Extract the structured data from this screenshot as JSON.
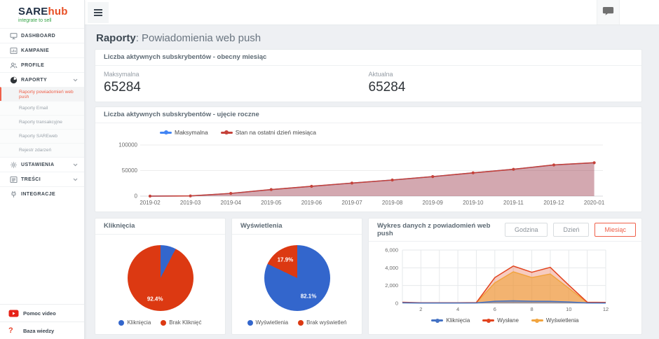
{
  "brand": {
    "name_primary": "SARE",
    "name_secondary": "hub",
    "tagline": "integrate to sell"
  },
  "accent_color": "#ef604a",
  "sidebar": {
    "items": [
      {
        "label": "DASHBOARD",
        "icon": "monitor-icon"
      },
      {
        "label": "KAMPANIE",
        "icon": "bar-chart-icon"
      },
      {
        "label": "PROFILE",
        "icon": "users-icon"
      },
      {
        "label": "RAPORTY",
        "icon": "pie-chart-icon",
        "expanded": true
      },
      {
        "label": "USTAWIENIA",
        "icon": "gear-icon"
      },
      {
        "label": "TREŚCI",
        "icon": "content-list-icon"
      },
      {
        "label": "INTEGRACJE",
        "icon": "plug-icon"
      }
    ],
    "submenu": [
      {
        "label": "Raporty powiadomień web push",
        "active": true
      },
      {
        "label": "Raporty Email",
        "active": false
      },
      {
        "label": "Raporty transakcyjne",
        "active": false
      },
      {
        "label": "Raporty SAREweb",
        "active": false
      },
      {
        "label": "Rejestr zdarzeń",
        "active": false
      }
    ],
    "footer": [
      {
        "label": "Pomoc video",
        "icon": "youtube-icon"
      },
      {
        "label": "Baza wiedzy",
        "icon": "question-icon"
      }
    ]
  },
  "topbar": {
    "icons": [
      "hamburger-icon",
      "chat-icon"
    ]
  },
  "header": {
    "title_bold": "Raporty",
    "title_rest": ": Powiadomienia web push"
  },
  "current_card": {
    "title": "Liczba aktywnych subskrybentów - obecny miesiąc",
    "stats": [
      {
        "label": "Maksymalna",
        "value": "65284"
      },
      {
        "label": "Aktualna",
        "value": "65284"
      }
    ]
  },
  "yearly_card": {
    "title": "Liczba aktywnych subskrybentów - ujęcie roczne"
  },
  "push_card": {
    "title": "Wykres danych z powiadomień web push",
    "buttons": [
      {
        "label": "Godzina",
        "active": false
      },
      {
        "label": "Dzień",
        "active": false
      },
      {
        "label": "Miesiąc",
        "active": true
      }
    ]
  },
  "chart_data": [
    {
      "id": "subscribers-yearly",
      "type": "area",
      "categories": [
        "2019-02",
        "2019-03",
        "2019-04",
        "2019-05",
        "2019-06",
        "2019-07",
        "2019-08",
        "2019-09",
        "2019-10",
        "2019-11",
        "2019-12",
        "2020-01"
      ],
      "series": [
        {
          "name": "Maksymalna",
          "color": "#4285f4",
          "values": [
            0,
            400,
            5300,
            12800,
            19200,
            25500,
            31500,
            38200,
            45500,
            52500,
            61000,
            65284
          ]
        },
        {
          "name": "Stan na ostatni dzień miesiąca",
          "color": "#c5423a",
          "values": [
            0,
            400,
            5300,
            12800,
            19200,
            25500,
            31500,
            38200,
            45500,
            52500,
            61000,
            65284
          ]
        }
      ],
      "ylim": [
        0,
        100000
      ],
      "ytick_values": [
        0,
        50000,
        100000
      ],
      "ytick_labels": [
        "0",
        "50000",
        "100000"
      ],
      "legend_position": "top",
      "grid": true
    },
    {
      "id": "clicks-pie",
      "type": "pie",
      "title": "Kliknięcia",
      "slices": [
        {
          "label": "Kliknięcia",
          "pct": 7.6,
          "color": "#3366cc",
          "show_label": false,
          "pct_label": "7.6%"
        },
        {
          "label": "Brak Kliknięć",
          "pct": 92.4,
          "color": "#dc3912",
          "show_label": true,
          "pct_label": "92.4%"
        }
      ]
    },
    {
      "id": "views-pie",
      "type": "pie",
      "title": "Wyświetlenia",
      "slices": [
        {
          "label": "Wyświetlenia",
          "pct": 82.1,
          "color": "#3366cc",
          "show_label": true,
          "pct_label": "82.1%"
        },
        {
          "label": "Brak wyświetleń",
          "pct": 17.9,
          "color": "#dc3912",
          "show_label": true,
          "pct_label": "17.9%"
        }
      ]
    },
    {
      "id": "push-notifications-data",
      "type": "area",
      "title": "Wykres danych z powiadomień web push",
      "x": [
        1,
        2,
        3,
        4,
        5,
        6,
        7,
        8,
        9,
        10,
        11,
        12
      ],
      "series": [
        {
          "name": "Kliknięcia",
          "color": "#4472c4",
          "values": [
            60,
            30,
            30,
            30,
            40,
            230,
            280,
            230,
            220,
            150,
            40,
            30
          ]
        },
        {
          "name": "Wysłane",
          "color": "#e2431e",
          "values": [
            120,
            60,
            60,
            60,
            80,
            2900,
            4200,
            3500,
            4050,
            2050,
            120,
            100
          ]
        },
        {
          "name": "Wyświetlenia",
          "color": "#f1a43f",
          "values": [
            90,
            40,
            40,
            40,
            60,
            2300,
            3550,
            2900,
            3300,
            1700,
            80,
            60
          ]
        }
      ],
      "ylim": [
        0,
        6000
      ],
      "ytick_values": [
        0,
        2000,
        4000,
        6000
      ],
      "ytick_labels": [
        "0",
        "2,000",
        "4,000",
        "6,000"
      ],
      "xtick_labels": [
        "2",
        "4",
        "6",
        "8",
        "10",
        "12"
      ],
      "legend_position": "bottom",
      "grid": true
    }
  ]
}
